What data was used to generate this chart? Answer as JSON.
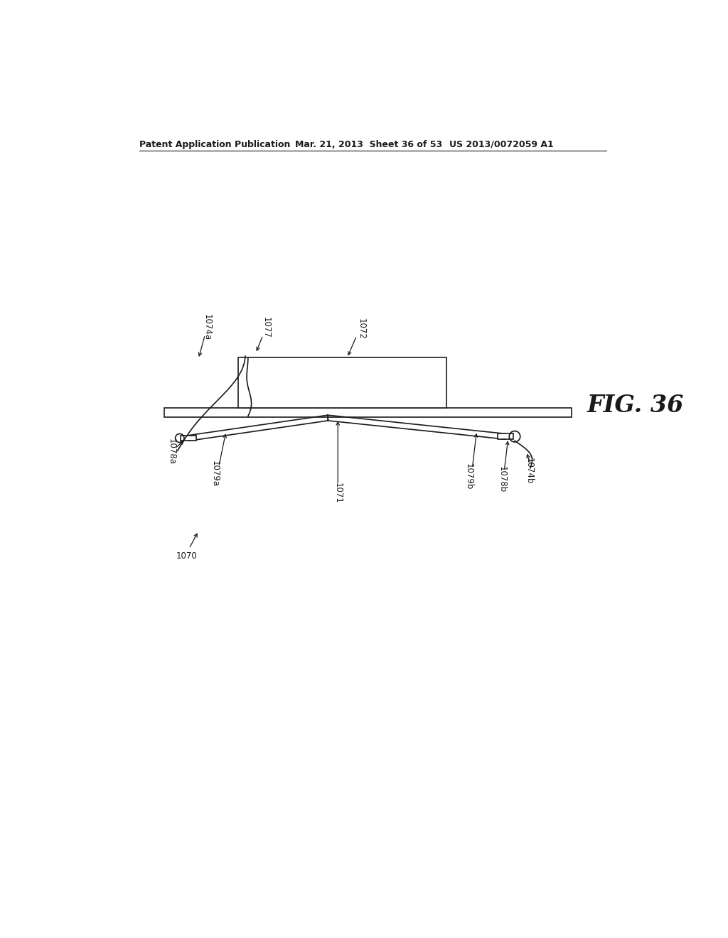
{
  "bg_color": "#ffffff",
  "line_color": "#1a1a1a",
  "header_left": "Patent Application Publication",
  "header_mid": "Mar. 21, 2013  Sheet 36 of 53",
  "header_right": "US 2013/0072059 A1",
  "fig_label": "FIG. 36",
  "label_1070": "1070",
  "label_1071": "1071",
  "label_1072": "1072",
  "label_1074a": "1074a",
  "label_1074b": "1074b",
  "label_1077": "1077",
  "label_1078a": "1078a",
  "label_1078b": "1078b",
  "label_1079a": "1079a",
  "label_1079b": "1079b"
}
